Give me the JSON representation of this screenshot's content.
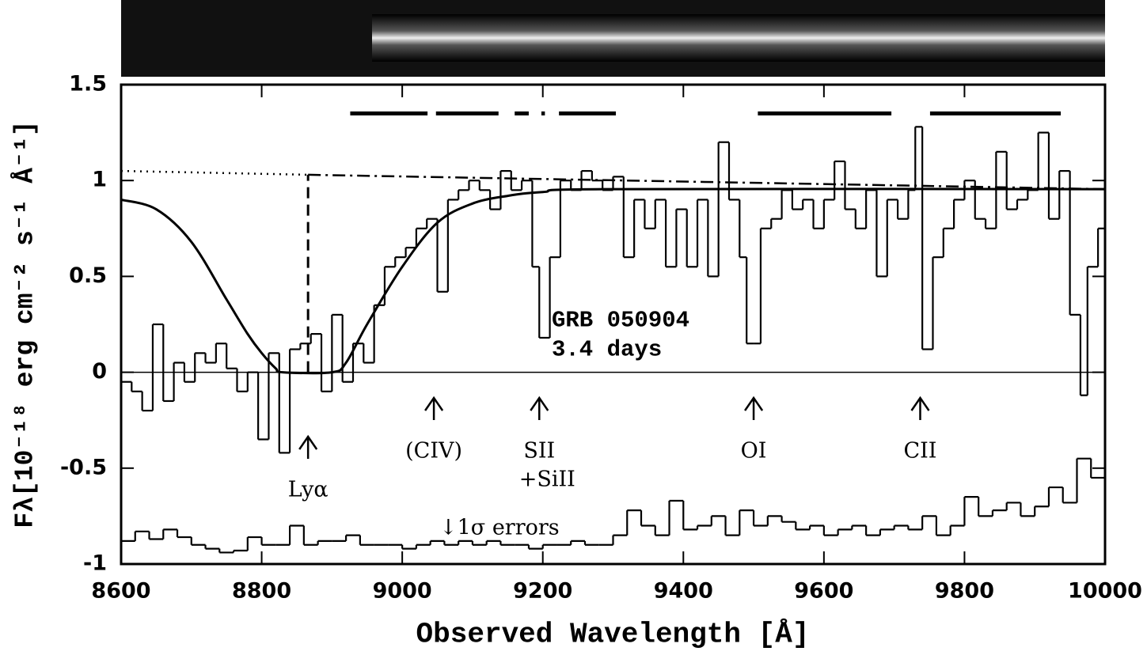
{
  "chart_data": {
    "type": "line",
    "xlabel": "Observed Wavelength [Å]",
    "ylabel": "Fλ[10⁻¹⁸ erg cm⁻² s⁻¹ Å⁻¹]",
    "xlim": [
      8600,
      10000
    ],
    "ylim": [
      -1,
      1.5
    ],
    "xticks": [
      8600,
      8800,
      9000,
      9200,
      9400,
      9600,
      9800,
      10000
    ],
    "yticks": [
      -1,
      -0.5,
      0,
      0.5,
      1,
      1.5
    ],
    "hline": 0,
    "annotations": [
      "GRB 050904",
      "3.4 days",
      "↓1σ errors"
    ],
    "features": [
      {
        "text": [
          "Lyα"
        ],
        "wavelength": 8866
      },
      {
        "text": [
          "(CIV)"
        ],
        "wavelength": 9045
      },
      {
        "text": [
          "SII",
          "+SiII"
        ],
        "wavelength": 9195
      },
      {
        "text": [
          "OI"
        ],
        "wavelength": 9500
      },
      {
        "text": [
          "CII"
        ],
        "wavelength": 9737
      }
    ],
    "lya_marker": {
      "x": 8866,
      "y": [
        0,
        1.03
      ]
    },
    "bars": {
      "y": 1.35,
      "ranges": [
        [
          8926,
          9036
        ],
        [
          9048,
          9137
        ],
        [
          9160,
          9180
        ],
        [
          9198,
          9203
        ],
        [
          9223,
          9304
        ],
        [
          9506,
          9696
        ],
        [
          9751,
          9937
        ]
      ]
    },
    "series": [
      {
        "style": "step",
        "color": "#000",
        "x": [
          8600,
          8615,
          8630,
          8645,
          8660,
          8675,
          8690,
          8705,
          8720,
          8735,
          8750,
          8765,
          8780,
          8795,
          8810,
          8825,
          8840,
          8855,
          8870,
          8885,
          8900,
          8915,
          8930,
          8945,
          8960,
          8975,
          8990,
          9005,
          9020,
          9035,
          9050,
          9065,
          9080,
          9095,
          9110,
          9125,
          9140,
          9155,
          9170,
          9185,
          9195,
          9210,
          9225,
          9240,
          9255,
          9270,
          9285,
          9300,
          9315,
          9330,
          9345,
          9360,
          9375,
          9390,
          9405,
          9420,
          9435,
          9450,
          9465,
          9480,
          9490,
          9500,
          9510,
          9525,
          9540,
          9555,
          9570,
          9585,
          9600,
          9615,
          9630,
          9645,
          9660,
          9675,
          9690,
          9705,
          9720,
          9730,
          9740,
          9755,
          9770,
          9785,
          9800,
          9815,
          9830,
          9845,
          9860,
          9875,
          9890,
          9905,
          9920,
          9935,
          9950,
          9965,
          9975,
          9990
        ],
        "values": [
          -0.05,
          -0.1,
          -0.2,
          0.25,
          -0.15,
          0.05,
          -0.05,
          0.1,
          0.05,
          0.15,
          0.02,
          -0.1,
          0.0,
          -0.35,
          0.1,
          -0.42,
          0.12,
          0.15,
          0.2,
          -0.1,
          0.3,
          -0.05,
          0.15,
          0.05,
          0.35,
          0.55,
          0.6,
          0.65,
          0.75,
          0.8,
          0.42,
          0.9,
          0.95,
          1.0,
          0.95,
          0.85,
          1.05,
          0.95,
          1.0,
          0.55,
          0.18,
          0.6,
          1.0,
          0.95,
          1.05,
          1.0,
          0.95,
          1.02,
          0.6,
          0.9,
          0.75,
          0.9,
          0.55,
          0.85,
          0.55,
          0.9,
          0.5,
          1.2,
          0.9,
          0.6,
          0.15,
          0.15,
          0.75,
          0.8,
          0.95,
          0.85,
          0.9,
          0.75,
          0.9,
          1.1,
          0.85,
          0.75,
          0.95,
          0.5,
          0.9,
          0.8,
          0.95,
          1.28,
          0.12,
          0.6,
          0.75,
          0.9,
          1.0,
          0.8,
          0.75,
          1.15,
          0.85,
          0.9,
          0.95,
          1.25,
          0.8,
          1.05,
          0.3,
          -0.12,
          0.55,
          0.75
        ]
      },
      {
        "style": "smooth",
        "color": "#000",
        "x": [
          8600,
          8650,
          8700,
          8750,
          8780,
          8800,
          8820,
          8830,
          8900,
          8920,
          8950,
          9000,
          9050,
          9100,
          9150,
          9200,
          9300,
          10000
        ],
        "values": [
          0.9,
          0.85,
          0.68,
          0.38,
          0.2,
          0.1,
          0.02,
          0.0,
          0.0,
          0.05,
          0.25,
          0.55,
          0.78,
          0.88,
          0.92,
          0.94,
          0.955,
          0.955
        ]
      },
      {
        "style": "dotted",
        "color": "#000",
        "x": [
          8600,
          8866
        ],
        "values": [
          1.05,
          1.03
        ]
      },
      {
        "style": "dashdot",
        "color": "#000",
        "x": [
          8866,
          10000
        ],
        "values": [
          1.03,
          0.955
        ]
      },
      {
        "style": "step",
        "color": "#000",
        "x": [
          8600,
          8620,
          8640,
          8660,
          8680,
          8700,
          8720,
          8740,
          8760,
          8780,
          8800,
          8820,
          8840,
          8860,
          8880,
          8900,
          8920,
          8940,
          8960,
          8980,
          9000,
          9020,
          9040,
          9060,
          9080,
          9100,
          9120,
          9140,
          9160,
          9180,
          9200,
          9220,
          9240,
          9260,
          9280,
          9300,
          9320,
          9340,
          9360,
          9380,
          9400,
          9420,
          9440,
          9460,
          9480,
          9500,
          9520,
          9540,
          9560,
          9580,
          9600,
          9620,
          9640,
          9660,
          9680,
          9700,
          9720,
          9740,
          9760,
          9780,
          9800,
          9820,
          9840,
          9860,
          9880,
          9900,
          9920,
          9940,
          9960,
          9980
        ],
        "values": [
          -0.88,
          -0.83,
          -0.87,
          -0.82,
          -0.86,
          -0.9,
          -0.92,
          -0.94,
          -0.93,
          -0.86,
          -0.9,
          -0.9,
          -0.8,
          -0.9,
          -0.88,
          -0.88,
          -0.85,
          -0.9,
          -0.9,
          -0.9,
          -0.92,
          -0.9,
          -0.88,
          -0.9,
          -0.88,
          -0.9,
          -0.88,
          -0.9,
          -0.9,
          -0.92,
          -0.9,
          -0.9,
          -0.88,
          -0.9,
          -0.9,
          -0.85,
          -0.72,
          -0.8,
          -0.85,
          -0.67,
          -0.82,
          -0.8,
          -0.75,
          -0.85,
          -0.72,
          -0.8,
          -0.75,
          -0.78,
          -0.82,
          -0.8,
          -0.85,
          -0.82,
          -0.8,
          -0.85,
          -0.82,
          -0.8,
          -0.82,
          -0.75,
          -0.85,
          -0.8,
          -0.65,
          -0.75,
          -0.72,
          -0.68,
          -0.75,
          -0.7,
          -0.6,
          -0.68,
          -0.45,
          -0.55
        ]
      }
    ]
  }
}
